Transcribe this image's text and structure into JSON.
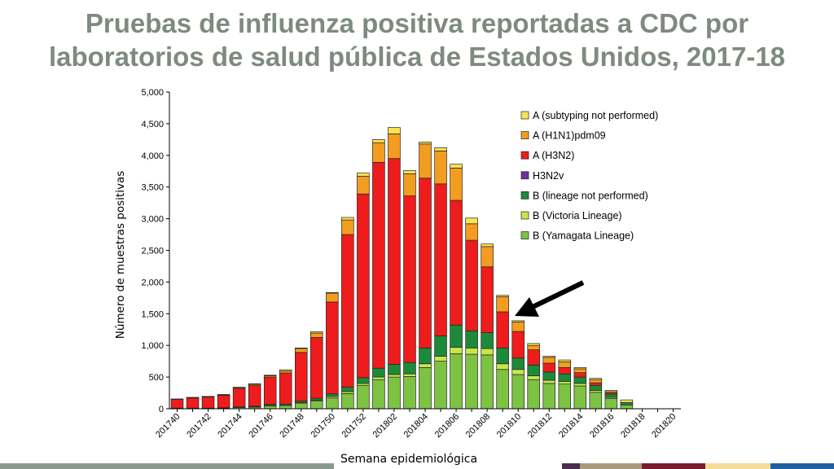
{
  "title_lines": [
    "Pruebas de influenza positiva reportadas a CDC por",
    "laboratorios de salud pública de Estados Unidos, 2017-18"
  ],
  "footer_colors": [
    "#8a9a8e",
    "#4b2d4e",
    "#a89a7a",
    "#7a1a2e",
    "#f3dc98",
    "#1f5fa0"
  ],
  "chart_data": {
    "type": "bar",
    "stacked": true,
    "ylabel": "Número de muestras positivas",
    "xlabel": "Semana epidemiológica",
    "ylim": [
      0,
      5000
    ],
    "yticks": [
      "0",
      "500",
      "1,000",
      "1,500",
      "2,000",
      "2,500",
      "3,000",
      "3,500",
      "4,000",
      "4,500",
      "5,000"
    ],
    "categories": [
      "201740",
      "201741",
      "201742",
      "201743",
      "201744",
      "201745",
      "201746",
      "201747",
      "201748",
      "201749",
      "201750",
      "201751",
      "201752",
      "201801",
      "201802",
      "201803",
      "201804",
      "201805",
      "201806",
      "201807",
      "201808",
      "201809",
      "201810",
      "201811",
      "201812",
      "201813",
      "201814",
      "201815",
      "201816",
      "201817",
      "201818",
      "201819",
      "201820"
    ],
    "x_tick_labels": [
      "201740",
      "201742",
      "201744",
      "201746",
      "201748",
      "201750",
      "201752",
      "201802",
      "201804",
      "201806",
      "201808",
      "201810",
      "201812",
      "201814",
      "201816",
      "201818",
      "201820"
    ],
    "legend_position": "top-right",
    "annotation": "black arrow pointing to week 201810",
    "series": [
      {
        "name": "B (Yamagata Lineage)",
        "color": "#7dc243",
        "values": [
          5,
          5,
          5,
          10,
          20,
          25,
          45,
          50,
          90,
          120,
          170,
          240,
          370,
          460,
          500,
          510,
          650,
          750,
          870,
          860,
          850,
          620,
          540,
          460,
          400,
          390,
          360,
          260,
          160,
          60,
          0,
          0,
          0
        ]
      },
      {
        "name": "B (Victoria Lineage)",
        "color": "#c8e64a",
        "values": [
          0,
          0,
          0,
          0,
          0,
          5,
          5,
          5,
          10,
          15,
          25,
          30,
          30,
          40,
          40,
          40,
          60,
          80,
          100,
          100,
          100,
          90,
          80,
          60,
          50,
          40,
          40,
          30,
          20,
          0,
          0,
          0,
          0
        ]
      },
      {
        "name": "B (lineage not performed)",
        "color": "#1d8a3a",
        "values": [
          5,
          5,
          5,
          5,
          10,
          10,
          20,
          20,
          20,
          30,
          40,
          70,
          90,
          140,
          160,
          180,
          250,
          320,
          350,
          270,
          250,
          250,
          180,
          170,
          130,
          120,
          100,
          80,
          50,
          40,
          0,
          0,
          0
        ]
      },
      {
        "name": "H3N2v",
        "color": "#7030a0",
        "values": [
          0,
          0,
          0,
          0,
          0,
          0,
          0,
          0,
          0,
          0,
          0,
          0,
          0,
          0,
          0,
          0,
          0,
          0,
          0,
          0,
          0,
          0,
          0,
          0,
          0,
          0,
          0,
          0,
          0,
          0,
          0,
          0,
          0
        ]
      },
      {
        "name": "A (H3N2)",
        "color": "#ee1c1c",
        "values": [
          140,
          160,
          175,
          195,
          290,
          325,
          430,
          490,
          770,
          960,
          1450,
          2410,
          2900,
          3250,
          3250,
          2630,
          2680,
          2400,
          1970,
          1430,
          1040,
          570,
          420,
          240,
          140,
          100,
          70,
          40,
          20,
          0,
          0,
          0,
          0
        ]
      },
      {
        "name": "A (H1N1)pdm09",
        "color": "#f29d1f",
        "values": [
          0,
          5,
          5,
          10,
          15,
          20,
          20,
          30,
          60,
          70,
          140,
          230,
          280,
          310,
          390,
          350,
          540,
          520,
          510,
          260,
          320,
          240,
          150,
          70,
          90,
          90,
          60,
          50,
          20,
          0,
          0,
          0,
          0
        ]
      },
      {
        "name": "A (subtyping not performed)",
        "color": "#fbe356",
        "values": [
          5,
          5,
          5,
          5,
          5,
          10,
          10,
          20,
          10,
          20,
          10,
          40,
          50,
          50,
          100,
          50,
          30,
          50,
          60,
          90,
          40,
          20,
          20,
          30,
          20,
          30,
          20,
          20,
          20,
          40,
          0,
          0,
          0
        ]
      }
    ]
  }
}
